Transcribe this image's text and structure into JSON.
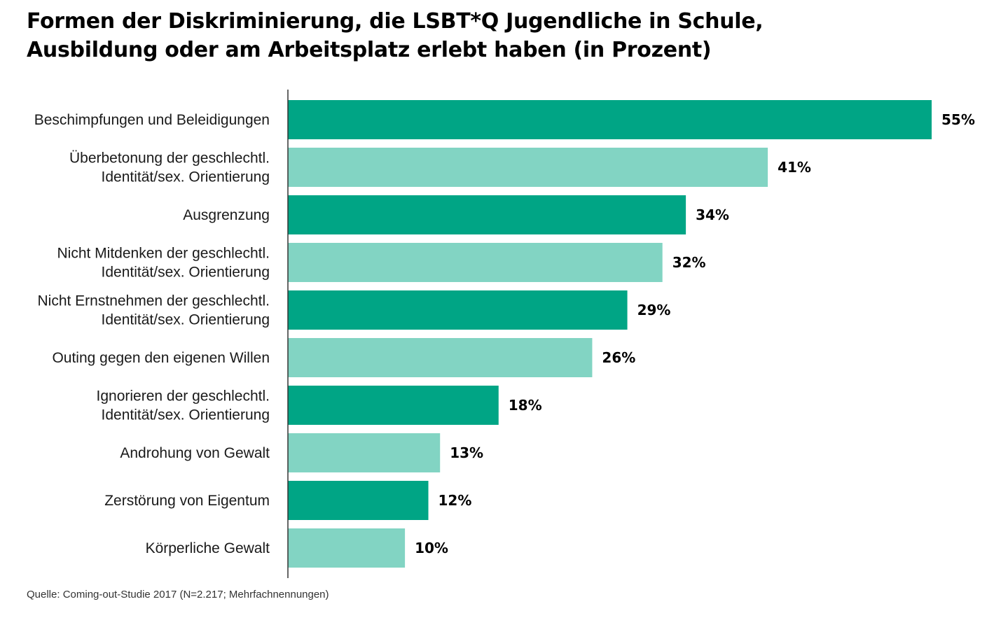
{
  "chart_data": {
    "type": "bar",
    "orientation": "horizontal",
    "title": [
      "Formen der Diskriminierung, die LSBT*Q Jugendliche in Schule,",
      "Ausbildung oder am Arbeitsplatz erlebt haben (in Prozent)"
    ],
    "categories": [
      [
        "Beschimpfungen und Beleidigungen"
      ],
      [
        "Überbetonung der geschlechtl.",
        "Identität/sex. Orientierung"
      ],
      [
        "Ausgrenzung"
      ],
      [
        "Nicht Mitdenken der geschlechtl.",
        "Identität/sex. Orientierung"
      ],
      [
        "Nicht Ernstnehmen der geschlechtl.",
        "Identität/sex. Orientierung"
      ],
      [
        "Outing gegen den eigenen Willen"
      ],
      [
        "Ignorieren der geschlechtl.",
        "Identität/sex. Orientierung"
      ],
      [
        "Androhung von Gewalt"
      ],
      [
        "Zerstörung von Eigentum"
      ],
      [
        "Körperliche Gewalt"
      ]
    ],
    "values": [
      55,
      41,
      34,
      32,
      29,
      26,
      18,
      13,
      12,
      10
    ],
    "value_labels": [
      "55%",
      "41%",
      "34%",
      "32%",
      "29%",
      "26%",
      "18%",
      "13%",
      "12%",
      "10%"
    ],
    "xlim": [
      0,
      55
    ],
    "xlabel": "",
    "ylabel": "",
    "grid": false,
    "colors": [
      "#00a585",
      "#82d4c3"
    ]
  },
  "source": "Quelle: Coming-out-Studie 2017 (N=2.217; Mehrfachnennungen)"
}
